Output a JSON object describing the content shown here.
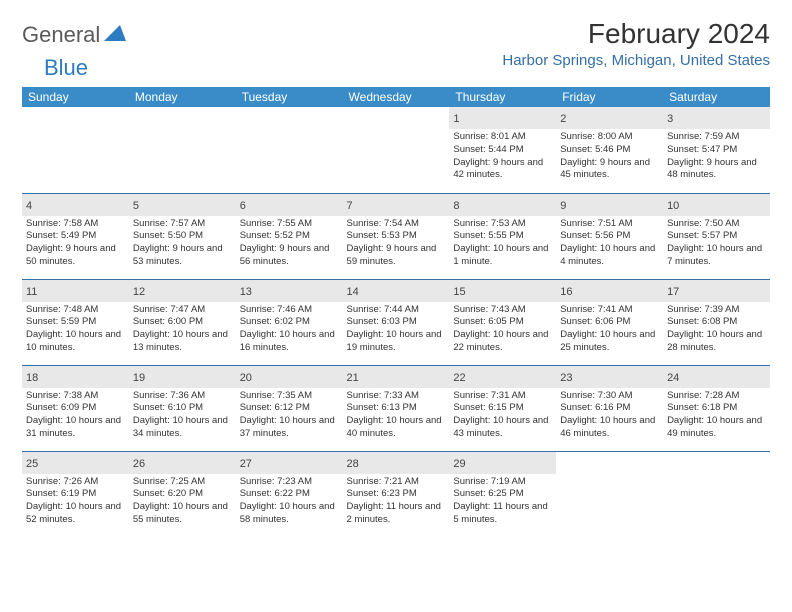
{
  "logo": {
    "general": "General",
    "blue": "Blue"
  },
  "title": "February 2024",
  "location": "Harbor Springs, Michigan, United States",
  "colors": {
    "header_bg": "#3a8cc9",
    "header_text": "#ffffff",
    "border": "#346fa8",
    "daynum_bg": "#e8e8e8",
    "location_text": "#346fa8",
    "logo_gray": "#5a5a5a",
    "logo_blue": "#2f7bbf"
  },
  "day_headers": [
    "Sunday",
    "Monday",
    "Tuesday",
    "Wednesday",
    "Thursday",
    "Friday",
    "Saturday"
  ],
  "weeks": [
    [
      {
        "n": "",
        "sr": "",
        "ss": "",
        "dl": ""
      },
      {
        "n": "",
        "sr": "",
        "ss": "",
        "dl": ""
      },
      {
        "n": "",
        "sr": "",
        "ss": "",
        "dl": ""
      },
      {
        "n": "",
        "sr": "",
        "ss": "",
        "dl": ""
      },
      {
        "n": "1",
        "sr": "Sunrise: 8:01 AM",
        "ss": "Sunset: 5:44 PM",
        "dl": "Daylight: 9 hours and 42 minutes."
      },
      {
        "n": "2",
        "sr": "Sunrise: 8:00 AM",
        "ss": "Sunset: 5:46 PM",
        "dl": "Daylight: 9 hours and 45 minutes."
      },
      {
        "n": "3",
        "sr": "Sunrise: 7:59 AM",
        "ss": "Sunset: 5:47 PM",
        "dl": "Daylight: 9 hours and 48 minutes."
      }
    ],
    [
      {
        "n": "4",
        "sr": "Sunrise: 7:58 AM",
        "ss": "Sunset: 5:49 PM",
        "dl": "Daylight: 9 hours and 50 minutes."
      },
      {
        "n": "5",
        "sr": "Sunrise: 7:57 AM",
        "ss": "Sunset: 5:50 PM",
        "dl": "Daylight: 9 hours and 53 minutes."
      },
      {
        "n": "6",
        "sr": "Sunrise: 7:55 AM",
        "ss": "Sunset: 5:52 PM",
        "dl": "Daylight: 9 hours and 56 minutes."
      },
      {
        "n": "7",
        "sr": "Sunrise: 7:54 AM",
        "ss": "Sunset: 5:53 PM",
        "dl": "Daylight: 9 hours and 59 minutes."
      },
      {
        "n": "8",
        "sr": "Sunrise: 7:53 AM",
        "ss": "Sunset: 5:55 PM",
        "dl": "Daylight: 10 hours and 1 minute."
      },
      {
        "n": "9",
        "sr": "Sunrise: 7:51 AM",
        "ss": "Sunset: 5:56 PM",
        "dl": "Daylight: 10 hours and 4 minutes."
      },
      {
        "n": "10",
        "sr": "Sunrise: 7:50 AM",
        "ss": "Sunset: 5:57 PM",
        "dl": "Daylight: 10 hours and 7 minutes."
      }
    ],
    [
      {
        "n": "11",
        "sr": "Sunrise: 7:48 AM",
        "ss": "Sunset: 5:59 PM",
        "dl": "Daylight: 10 hours and 10 minutes."
      },
      {
        "n": "12",
        "sr": "Sunrise: 7:47 AM",
        "ss": "Sunset: 6:00 PM",
        "dl": "Daylight: 10 hours and 13 minutes."
      },
      {
        "n": "13",
        "sr": "Sunrise: 7:46 AM",
        "ss": "Sunset: 6:02 PM",
        "dl": "Daylight: 10 hours and 16 minutes."
      },
      {
        "n": "14",
        "sr": "Sunrise: 7:44 AM",
        "ss": "Sunset: 6:03 PM",
        "dl": "Daylight: 10 hours and 19 minutes."
      },
      {
        "n": "15",
        "sr": "Sunrise: 7:43 AM",
        "ss": "Sunset: 6:05 PM",
        "dl": "Daylight: 10 hours and 22 minutes."
      },
      {
        "n": "16",
        "sr": "Sunrise: 7:41 AM",
        "ss": "Sunset: 6:06 PM",
        "dl": "Daylight: 10 hours and 25 minutes."
      },
      {
        "n": "17",
        "sr": "Sunrise: 7:39 AM",
        "ss": "Sunset: 6:08 PM",
        "dl": "Daylight: 10 hours and 28 minutes."
      }
    ],
    [
      {
        "n": "18",
        "sr": "Sunrise: 7:38 AM",
        "ss": "Sunset: 6:09 PM",
        "dl": "Daylight: 10 hours and 31 minutes."
      },
      {
        "n": "19",
        "sr": "Sunrise: 7:36 AM",
        "ss": "Sunset: 6:10 PM",
        "dl": "Daylight: 10 hours and 34 minutes."
      },
      {
        "n": "20",
        "sr": "Sunrise: 7:35 AM",
        "ss": "Sunset: 6:12 PM",
        "dl": "Daylight: 10 hours and 37 minutes."
      },
      {
        "n": "21",
        "sr": "Sunrise: 7:33 AM",
        "ss": "Sunset: 6:13 PM",
        "dl": "Daylight: 10 hours and 40 minutes."
      },
      {
        "n": "22",
        "sr": "Sunrise: 7:31 AM",
        "ss": "Sunset: 6:15 PM",
        "dl": "Daylight: 10 hours and 43 minutes."
      },
      {
        "n": "23",
        "sr": "Sunrise: 7:30 AM",
        "ss": "Sunset: 6:16 PM",
        "dl": "Daylight: 10 hours and 46 minutes."
      },
      {
        "n": "24",
        "sr": "Sunrise: 7:28 AM",
        "ss": "Sunset: 6:18 PM",
        "dl": "Daylight: 10 hours and 49 minutes."
      }
    ],
    [
      {
        "n": "25",
        "sr": "Sunrise: 7:26 AM",
        "ss": "Sunset: 6:19 PM",
        "dl": "Daylight: 10 hours and 52 minutes."
      },
      {
        "n": "26",
        "sr": "Sunrise: 7:25 AM",
        "ss": "Sunset: 6:20 PM",
        "dl": "Daylight: 10 hours and 55 minutes."
      },
      {
        "n": "27",
        "sr": "Sunrise: 7:23 AM",
        "ss": "Sunset: 6:22 PM",
        "dl": "Daylight: 10 hours and 58 minutes."
      },
      {
        "n": "28",
        "sr": "Sunrise: 7:21 AM",
        "ss": "Sunset: 6:23 PM",
        "dl": "Daylight: 11 hours and 2 minutes."
      },
      {
        "n": "29",
        "sr": "Sunrise: 7:19 AM",
        "ss": "Sunset: 6:25 PM",
        "dl": "Daylight: 11 hours and 5 minutes."
      },
      {
        "n": "",
        "sr": "",
        "ss": "",
        "dl": ""
      },
      {
        "n": "",
        "sr": "",
        "ss": "",
        "dl": ""
      }
    ]
  ]
}
